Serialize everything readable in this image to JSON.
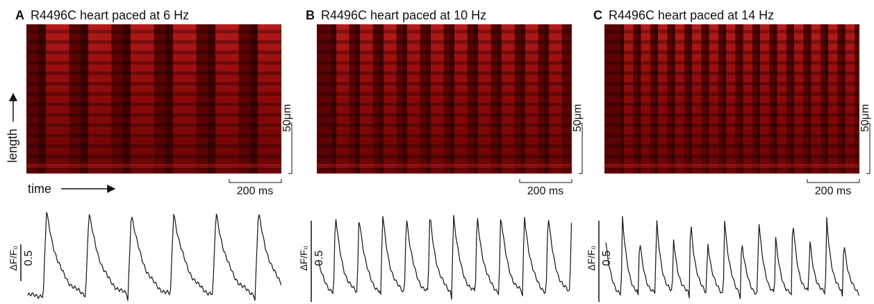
{
  "panels": [
    {
      "letter": "A",
      "title": "R4496C heart paced at 6 Hz",
      "length_scale": "50μm",
      "time_scale": "200 ms",
      "amplitude_label": "ΔF/F₀",
      "amplitude_scale": "0.5"
    },
    {
      "letter": "B",
      "title": "R4496C heart paced at 10 Hz",
      "length_scale": "50μm",
      "time_scale": "200 ms",
      "amplitude_label": "ΔF/F₀",
      "amplitude_scale": "0.5"
    },
    {
      "letter": "C",
      "title": "R4496C heart paced at 14 Hz",
      "length_scale": "50μm",
      "time_scale": "200 ms",
      "amplitude_label": "ΔF/F₀",
      "amplitude_scale": "0.5"
    }
  ],
  "axis_labels": {
    "length": "length",
    "time": "time"
  }
}
